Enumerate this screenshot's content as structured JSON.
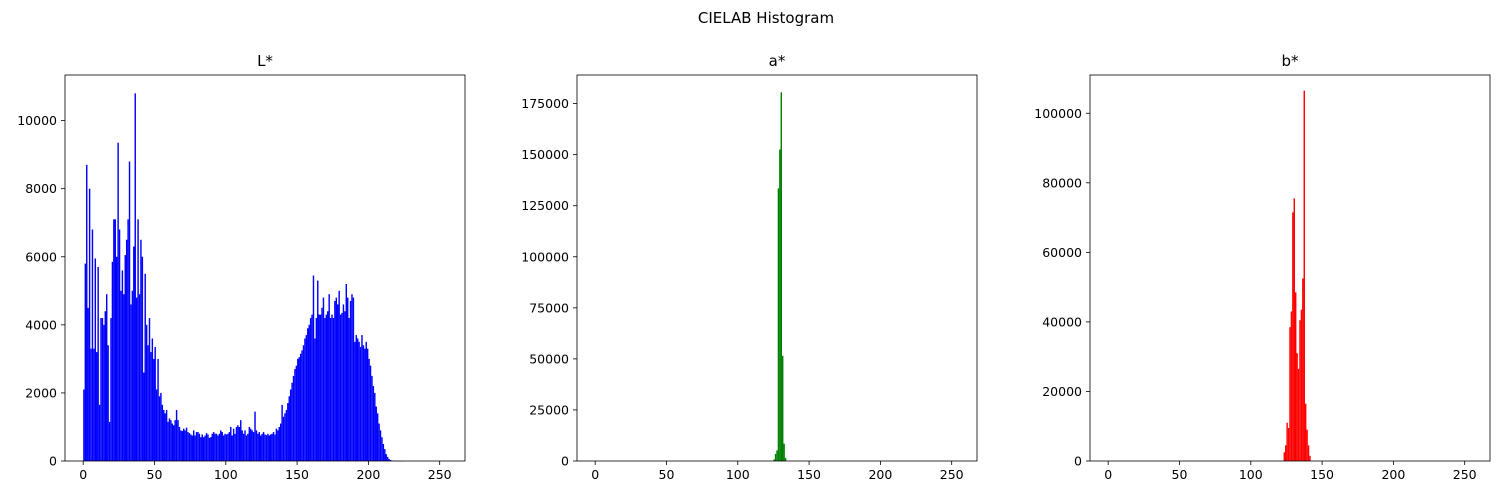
{
  "figure": {
    "suptitle": "CIELAB Histogram"
  },
  "chart_data": [
    {
      "type": "bar",
      "title": "L*",
      "color": "#0000ff",
      "xlim": [
        -12.75,
        267.75
      ],
      "ylim": [
        0,
        11340
      ],
      "xticks": [
        0,
        50,
        100,
        150,
        200,
        250
      ],
      "yticks": [
        0,
        2000,
        4000,
        6000,
        8000,
        10000
      ],
      "bins": {
        "start": 0,
        "values": [
          2100,
          5800,
          8700,
          4500,
          8000,
          3300,
          6800,
          3300,
          5950,
          3200,
          5700,
          1650,
          4200,
          4200,
          4000,
          4400,
          4900,
          3400,
          1150,
          4200,
          5850,
          7100,
          7100,
          6000,
          9350,
          6800,
          5000,
          5600,
          4900,
          6050,
          6500,
          7100,
          8800,
          4600,
          5000,
          6300,
          10800,
          4800,
          7100,
          4900,
          6500,
          6000,
          2600,
          5500,
          4000,
          3400,
          4200,
          3200,
          3600,
          3000,
          3350,
          2100,
          3000,
          1900,
          2000,
          1650,
          1500,
          1400,
          1500,
          1150,
          1250,
          1200,
          1100,
          1050,
          1200,
          1500,
          1200,
          1000,
          900,
          880,
          950,
          900,
          980,
          850,
          820,
          780,
          750,
          900,
          750,
          850,
          850,
          800,
          700,
          780,
          700,
          750,
          820,
          780,
          680,
          700,
          800,
          850,
          800,
          800,
          750,
          800,
          900,
          850,
          750,
          800,
          780,
          800,
          850,
          1000,
          750,
          950,
          800,
          1000,
          1050,
          1000,
          1200,
          900,
          800,
          900,
          750,
          800,
          1000,
          950,
          900,
          850,
          1450,
          900,
          800,
          850,
          750,
          800,
          850,
          780,
          760,
          800,
          750,
          780,
          800,
          850,
          780,
          950,
          900,
          1000,
          1100,
          1650,
          1300,
          1400,
          1500,
          1700,
          1900,
          2100,
          2300,
          2500,
          2700,
          2800,
          3000,
          3050,
          3150,
          3250,
          3400,
          3600,
          3700,
          3900,
          4000,
          4200,
          4300,
          5450,
          3600,
          4200,
          5300,
          4300,
          4300,
          4500,
          4800,
          4200,
          4300,
          4400,
          4900,
          4200,
          4300,
          4200,
          4700,
          4800,
          4600,
          5000,
          4300,
          4350,
          4600,
          4400,
          5200,
          4800,
          4200,
          4700,
          4900,
          4800,
          3500,
          3700,
          3600,
          3500,
          3350,
          3700,
          3400,
          3300,
          3500,
          3300,
          3000,
          2800,
          2500,
          2200,
          2000,
          1600,
          1400,
          1100,
          900,
          700,
          500,
          350,
          200,
          120,
          60,
          30,
          15,
          8,
          5,
          3,
          2,
          1,
          1,
          1,
          0,
          0,
          0,
          0,
          0,
          0,
          0,
          0,
          0,
          0,
          0,
          0,
          0,
          0,
          0,
          0,
          0,
          0,
          0,
          0,
          0,
          0,
          0,
          0,
          0,
          0,
          0,
          0,
          0,
          0,
          0,
          0,
          0,
          0,
          30,
          60,
          50,
          30
        ]
      }
    },
    {
      "type": "bar",
      "title": "a*",
      "color": "#008000",
      "xlim": [
        -12.75,
        267.75
      ],
      "ylim": [
        0,
        189000
      ],
      "xticks": [
        0,
        50,
        100,
        150,
        200,
        250
      ],
      "yticks": [
        0,
        25000,
        50000,
        75000,
        100000,
        125000,
        150000,
        175000
      ],
      "bins": {
        "start": 0,
        "values": [
          0,
          0,
          0,
          0,
          0,
          0,
          0,
          0,
          0,
          0,
          0,
          0,
          0,
          0,
          0,
          0,
          0,
          0,
          0,
          0,
          0,
          0,
          0,
          0,
          0,
          0,
          0,
          0,
          0,
          0,
          0,
          0,
          0,
          0,
          0,
          0,
          0,
          0,
          0,
          0,
          0,
          0,
          0,
          0,
          0,
          0,
          0,
          0,
          0,
          0,
          0,
          0,
          0,
          0,
          0,
          0,
          0,
          0,
          0,
          0,
          0,
          0,
          0,
          0,
          0,
          0,
          0,
          0,
          0,
          0,
          0,
          0,
          0,
          0,
          0,
          0,
          0,
          0,
          0,
          0,
          0,
          0,
          0,
          0,
          0,
          0,
          0,
          0,
          0,
          0,
          0,
          0,
          0,
          0,
          0,
          0,
          0,
          0,
          0,
          0,
          0,
          0,
          0,
          0,
          0,
          0,
          0,
          0,
          0,
          0,
          0,
          0,
          0,
          0,
          0,
          0,
          0,
          0,
          0,
          0,
          0,
          0,
          0,
          0,
          0,
          0,
          0,
          0,
          0,
          0,
          0,
          0,
          0,
          0,
          0,
          0,
          0,
          0,
          0,
          0,
          0,
          0,
          0,
          0,
          0,
          0,
          0,
          0,
          0,
          0,
          0,
          0,
          0,
          0,
          0,
          0,
          0,
          0,
          0,
          0,
          0,
          0,
          0,
          0,
          0,
          0,
          0,
          0,
          0,
          0,
          0,
          0,
          0,
          0,
          0,
          0,
          0,
          0,
          0,
          0,
          0,
          0,
          0,
          0,
          0,
          0,
          0,
          0,
          0,
          0,
          0,
          0,
          0,
          0,
          0,
          0,
          0,
          0,
          0,
          0,
          0,
          0,
          0,
          0,
          0,
          0,
          0,
          0,
          0,
          0,
          0,
          0,
          0,
          0,
          0,
          0,
          0,
          0,
          0,
          0,
          0,
          0,
          0,
          0,
          0,
          0,
          0,
          0,
          0,
          0,
          0,
          0,
          0,
          0,
          0,
          0,
          0,
          0,
          0,
          0,
          0,
          0,
          0,
          0,
          0,
          0,
          0,
          0,
          0,
          0,
          0,
          0,
          0,
          0,
          0,
          0,
          0,
          0,
          0,
          0,
          0,
          0,
          0,
          0,
          0,
          0,
          0,
          0,
          0,
          0,
          0,
          0,
          0,
          0,
          0,
          0,
          0,
          0
        ],
        "overrides": {
          "125": 800,
          "126": 3500,
          "127": 5200,
          "128": 133500,
          "129": 152500,
          "130": 180500,
          "131": 51500,
          "132": 8500,
          "133": 1500
        }
      }
    },
    {
      "type": "bar",
      "title": "b*",
      "color": "#ff0000",
      "xlim": [
        -12.75,
        267.75
      ],
      "ylim": [
        0,
        111000
      ],
      "xticks": [
        0,
        50,
        100,
        150,
        200,
        250
      ],
      "yticks": [
        0,
        20000,
        40000,
        60000,
        80000,
        100000
      ],
      "bins": {
        "start": 0,
        "values": [],
        "overrides": {
          "123": 2500,
          "124": 4500,
          "125": 11000,
          "126": 9500,
          "127": 38500,
          "128": 43000,
          "129": 71500,
          "130": 75500,
          "131": 48500,
          "132": 31000,
          "133": 26500,
          "134": 40500,
          "135": 43500,
          "136": 52500,
          "137": 106500,
          "138": 16500,
          "139": 9000,
          "140": 4500,
          "141": 1500
        }
      }
    }
  ]
}
